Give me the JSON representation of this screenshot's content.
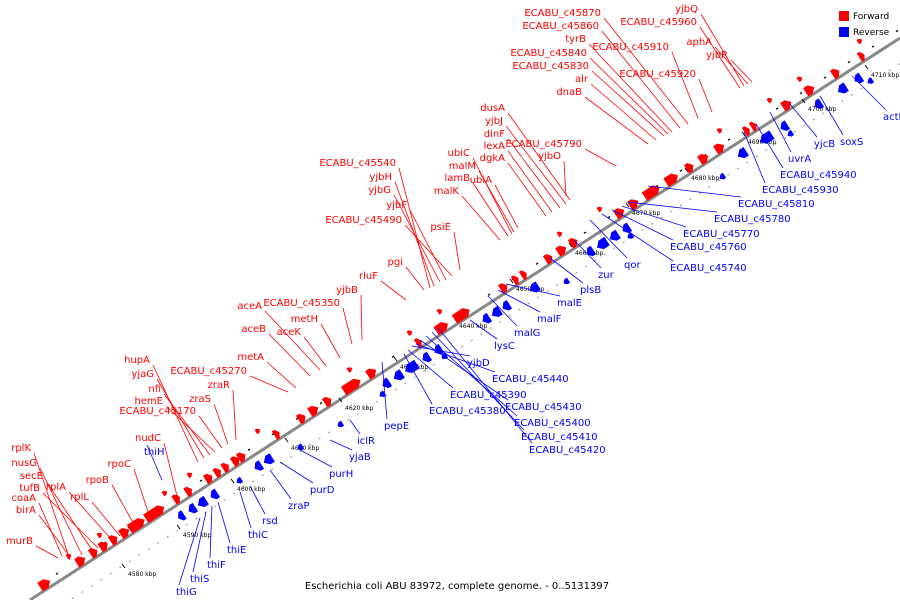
{
  "caption": "Escherichia coli ABU 83972, complete genome. - 0..5131397",
  "legend": [
    {
      "label": "Forward",
      "color": "#ff0000"
    },
    {
      "label": "Reverse",
      "color": "#0000ff"
    }
  ],
  "colors": {
    "forward": "#ff0000",
    "reverse": "#0000ff",
    "backbone": "#888888",
    "tick": "#000000"
  },
  "kbp_labels": [
    "4580 kbp",
    "4590 kbp",
    "4600 kbp",
    "4610 kbp",
    "4620 kbp",
    "4630 kbp",
    "4640 kbp",
    "4650 kbp",
    "4660 kbp",
    "4670 kbp",
    "4680 kbp",
    "4690 kbp",
    "4700 kbp",
    "4710 kbp"
  ],
  "forward_genes": [
    "rplK",
    "nusG",
    "secE",
    "tufB",
    "rplA",
    "rplL",
    "rpoB",
    "rpoC",
    "nudC",
    "murB",
    "birA",
    "coaA",
    "hupA",
    "yjaG",
    "nfi",
    "hemE",
    "ECABU_c45170",
    "zraS",
    "zraR",
    "metA",
    "ECABU_c45270",
    "aceB",
    "aceA",
    "aceK",
    "ECABU_c45350",
    "metH",
    "yjbB",
    "rluF",
    "pgi",
    "yjbF",
    "yjbG",
    "yjbH",
    "ECABU_c45490",
    "ECABU_c45540",
    "psiE",
    "malK",
    "lamB",
    "malM",
    "ubiC",
    "ubiA",
    "dgkA",
    "lexA",
    "dinF",
    "yjbJ",
    "dusA",
    "yjbO",
    "ECABU_c45790",
    "dnaB",
    "alr",
    "ECABU_c45830",
    "ECABU_c45840",
    "tyrB",
    "ECABU_c45860",
    "ECABU_c45870",
    "ECABU_c45910",
    "ECABU_c45920",
    "ECABU_c45960",
    "yjbQ",
    "aphA",
    "yjbR"
  ],
  "reverse_genes": [
    "thiH",
    "thiG",
    "thiS",
    "thiF",
    "thiE",
    "thiC",
    "rsd",
    "zraP",
    "purD",
    "purH",
    "yjaB",
    "iclR",
    "pepE",
    "ECABU_c45380",
    "ECABU_c45390",
    "yjbD",
    "ECABU_c45440",
    "ECABU_c45430",
    "ECABU_c45400",
    "ECABU_c45410",
    "ECABU_c45420",
    "lysC",
    "malG",
    "malF",
    "malE",
    "plsB",
    "zur",
    "qor",
    "ECABU_c45740",
    "ECABU_c45760",
    "ECABU_c45770",
    "ECABU_c45780",
    "ECABU_c45810",
    "ECABU_c45930",
    "ECABU_c45940",
    "uvrA",
    "yjcB",
    "soxS",
    "actP"
  ]
}
